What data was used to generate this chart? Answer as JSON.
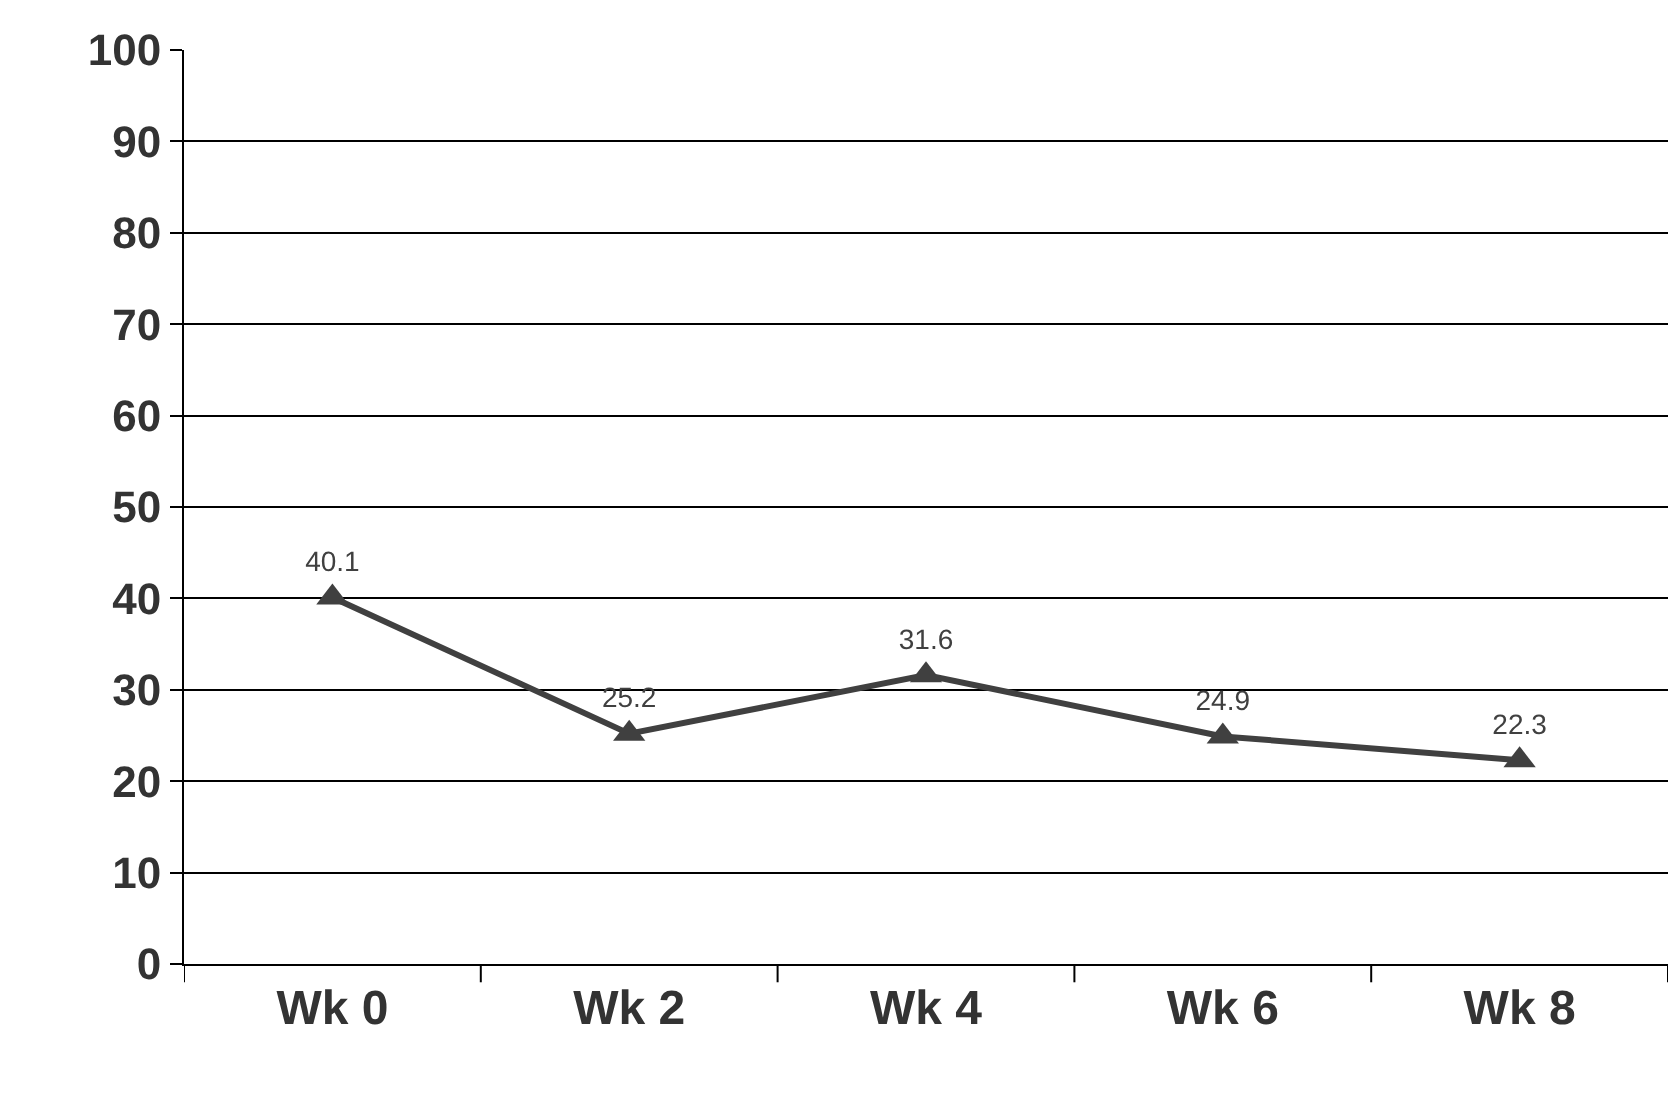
{
  "chart_data": {
    "type": "line",
    "categories": [
      "Wk 0",
      "Wk 2",
      "Wk 4",
      "Wk 6",
      "Wk 8"
    ],
    "series": [
      {
        "color": "#404040",
        "values": [
          40.1,
          25.2,
          31.6,
          24.9,
          22.3
        ]
      }
    ],
    "ylim": [
      0,
      100
    ],
    "yticks": [
      0,
      10,
      20,
      30,
      40,
      50,
      60,
      70,
      80,
      90,
      100
    ],
    "grid": "y",
    "marker": "triangle",
    "line_style": "solid",
    "data_labels": true,
    "legend": false
  }
}
